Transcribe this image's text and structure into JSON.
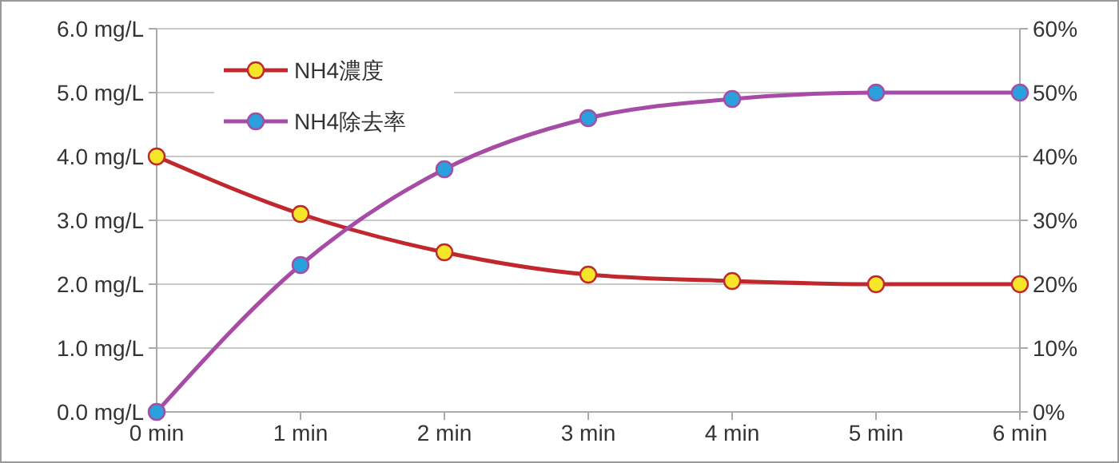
{
  "chart_data": {
    "type": "line",
    "categories": [
      "0 min",
      "1 min",
      "2 min",
      "3 min",
      "4 min",
      "5 min",
      "6 min"
    ],
    "series": [
      {
        "name": "NH4濃度",
        "color": "#c0282d",
        "values": [
          4.0,
          3.1,
          2.5,
          2.15,
          2.05,
          2.0,
          2.0
        ]
      },
      {
        "name": "NH4除去率",
        "color": "#a64ca6",
        "axis": "y2",
        "values": [
          0,
          23,
          38,
          46,
          49,
          50,
          50
        ]
      }
    ],
    "ylim": [
      0,
      6
    ],
    "yticks": [
      {
        "value": 0,
        "label": "0.0 mg/L"
      },
      {
        "value": 1,
        "label": "1.0 mg/L"
      },
      {
        "value": 2,
        "label": "2.0 mg/L"
      },
      {
        "value": 3,
        "label": "3.0 mg/L"
      },
      {
        "value": 4,
        "label": "4.0 mg/L"
      },
      {
        "value": 5,
        "label": "5.0 mg/L"
      },
      {
        "value": 6,
        "label": "6.0 mg/L"
      }
    ],
    "y2lim": [
      0,
      60
    ],
    "y2ticks": [
      {
        "value": 0,
        "label": "0%"
      },
      {
        "value": 10,
        "label": "10%"
      },
      {
        "value": 20,
        "label": "20%"
      },
      {
        "value": 30,
        "label": "30%"
      },
      {
        "value": 40,
        "label": "40%"
      },
      {
        "value": 50,
        "label": "50%"
      },
      {
        "value": 60,
        "label": "60%"
      }
    ],
    "grid": "y",
    "legend": "top left",
    "marker": "circle",
    "line_style": "solid"
  }
}
